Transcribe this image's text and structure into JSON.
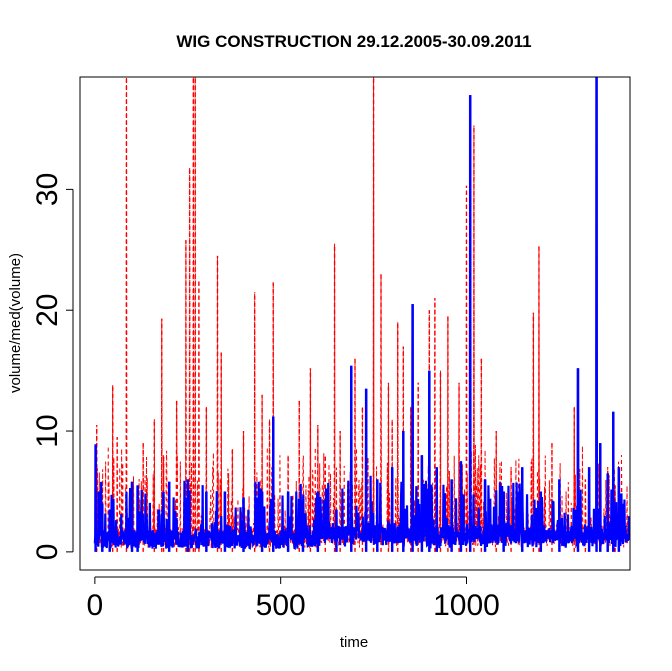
{
  "chart_data": {
    "type": "line",
    "title": "WIG CONSTRUCTION 29.12.2005-30.09.2011",
    "xlabel": "time",
    "ylabel": "volume/med(volume)",
    "xlim": [
      -40,
      1440
    ],
    "ylim": [
      -1.5,
      39.3
    ],
    "x_ticks": [
      0,
      500,
      1000
    ],
    "y_ticks": [
      0,
      10,
      20,
      30
    ],
    "grid": false,
    "legend": "none",
    "n_points": 1438,
    "series": [
      {
        "name": "red",
        "color": "#ff0000",
        "line_style": "dashed",
        "base_level": 1.5,
        "spikes": [
          {
            "x": 5,
            "y": 10.5
          },
          {
            "x": 48,
            "y": 13.8
          },
          {
            "x": 60,
            "y": 9.5
          },
          {
            "x": 85,
            "y": 39.3
          },
          {
            "x": 100,
            "y": 5.5
          },
          {
            "x": 130,
            "y": 9.0
          },
          {
            "x": 160,
            "y": 11.0
          },
          {
            "x": 180,
            "y": 19.3
          },
          {
            "x": 185,
            "y": 8.0
          },
          {
            "x": 220,
            "y": 12.5
          },
          {
            "x": 245,
            "y": 25.8
          },
          {
            "x": 255,
            "y": 31.8
          },
          {
            "x": 265,
            "y": 39.3
          },
          {
            "x": 270,
            "y": 39.3
          },
          {
            "x": 280,
            "y": 22.5
          },
          {
            "x": 300,
            "y": 12.0
          },
          {
            "x": 330,
            "y": 24.5
          },
          {
            "x": 340,
            "y": 16.5
          },
          {
            "x": 370,
            "y": 8.5
          },
          {
            "x": 400,
            "y": 10.0
          },
          {
            "x": 430,
            "y": 21.5
          },
          {
            "x": 450,
            "y": 13.0
          },
          {
            "x": 470,
            "y": 11.0
          },
          {
            "x": 480,
            "y": 22.3
          },
          {
            "x": 520,
            "y": 8.0
          },
          {
            "x": 550,
            "y": 12.5
          },
          {
            "x": 580,
            "y": 15.2
          },
          {
            "x": 600,
            "y": 10.5
          },
          {
            "x": 620,
            "y": 8.0
          },
          {
            "x": 645,
            "y": 25.5
          },
          {
            "x": 660,
            "y": 10.0
          },
          {
            "x": 700,
            "y": 16.0
          },
          {
            "x": 720,
            "y": 12.0
          },
          {
            "x": 750,
            "y": 39.3
          },
          {
            "x": 770,
            "y": 23.0
          },
          {
            "x": 790,
            "y": 14.0
          },
          {
            "x": 800,
            "y": 11.0
          },
          {
            "x": 815,
            "y": 19.0
          },
          {
            "x": 830,
            "y": 17.0
          },
          {
            "x": 850,
            "y": 12.0
          },
          {
            "x": 870,
            "y": 14.0
          },
          {
            "x": 900,
            "y": 20.0
          },
          {
            "x": 915,
            "y": 21.0
          },
          {
            "x": 930,
            "y": 15.0
          },
          {
            "x": 950,
            "y": 19.5
          },
          {
            "x": 980,
            "y": 14.0
          },
          {
            "x": 1000,
            "y": 30.3
          },
          {
            "x": 1020,
            "y": 35.3
          },
          {
            "x": 1040,
            "y": 16.0
          },
          {
            "x": 1080,
            "y": 10.0
          },
          {
            "x": 1120,
            "y": 7.0
          },
          {
            "x": 1180,
            "y": 19.8
          },
          {
            "x": 1195,
            "y": 25.3
          },
          {
            "x": 1230,
            "y": 9.0
          },
          {
            "x": 1290,
            "y": 12.0
          },
          {
            "x": 1320,
            "y": 6.0
          },
          {
            "x": 1380,
            "y": 7.0
          },
          {
            "x": 1400,
            "y": 5.5
          }
        ]
      },
      {
        "name": "blue",
        "color": "#0000ff",
        "line_style": "solid",
        "base_level": 1.3,
        "spikes": [
          {
            "x": 2,
            "y": 8.9
          },
          {
            "x": 20,
            "y": 4.0
          },
          {
            "x": 40,
            "y": 3.5
          },
          {
            "x": 100,
            "y": 5.8
          },
          {
            "x": 115,
            "y": 5.5
          },
          {
            "x": 200,
            "y": 5.8
          },
          {
            "x": 250,
            "y": 6.0
          },
          {
            "x": 300,
            "y": 5.0
          },
          {
            "x": 350,
            "y": 5.0
          },
          {
            "x": 400,
            "y": 4.5
          },
          {
            "x": 450,
            "y": 5.0
          },
          {
            "x": 480,
            "y": 11.2
          },
          {
            "x": 520,
            "y": 5.0
          },
          {
            "x": 560,
            "y": 4.0
          },
          {
            "x": 600,
            "y": 5.0
          },
          {
            "x": 650,
            "y": 3.5
          },
          {
            "x": 690,
            "y": 15.4
          },
          {
            "x": 730,
            "y": 13.5
          },
          {
            "x": 760,
            "y": 6.0
          },
          {
            "x": 800,
            "y": 7.0
          },
          {
            "x": 830,
            "y": 10.0
          },
          {
            "x": 855,
            "y": 20.5
          },
          {
            "x": 880,
            "y": 8.0
          },
          {
            "x": 900,
            "y": 15.0
          },
          {
            "x": 920,
            "y": 7.0
          },
          {
            "x": 960,
            "y": 6.0
          },
          {
            "x": 985,
            "y": 7.5
          },
          {
            "x": 1010,
            "y": 37.8
          },
          {
            "x": 1050,
            "y": 6.0
          },
          {
            "x": 1100,
            "y": 5.0
          },
          {
            "x": 1150,
            "y": 7.0
          },
          {
            "x": 1200,
            "y": 5.0
          },
          {
            "x": 1250,
            "y": 6.0
          },
          {
            "x": 1300,
            "y": 15.2
          },
          {
            "x": 1330,
            "y": 7.0
          },
          {
            "x": 1350,
            "y": 39.3
          },
          {
            "x": 1360,
            "y": 9.0
          },
          {
            "x": 1380,
            "y": 6.5
          },
          {
            "x": 1395,
            "y": 11.6
          },
          {
            "x": 1410,
            "y": 7.0
          }
        ]
      }
    ]
  }
}
